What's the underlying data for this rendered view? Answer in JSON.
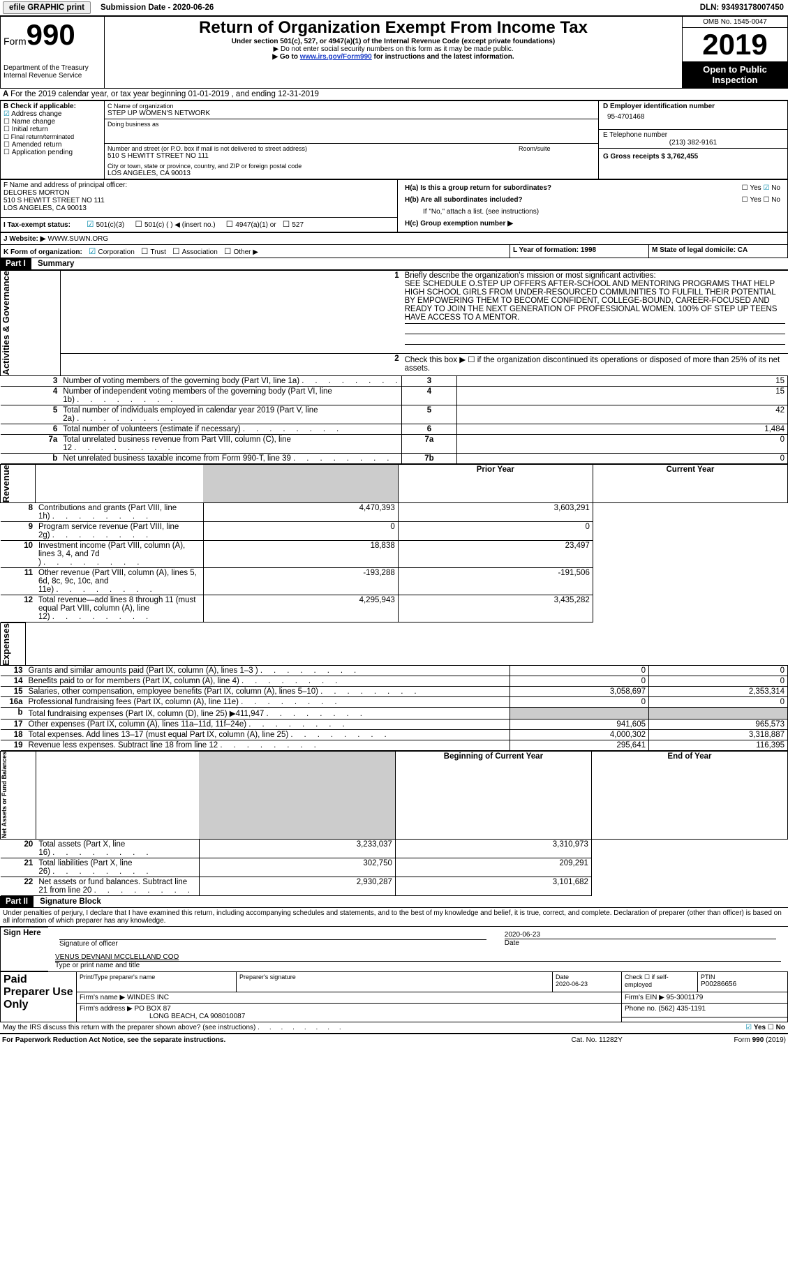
{
  "colors": {
    "link": "#1a3cc7",
    "checked": "#0088aa",
    "header_bg": "#000000",
    "header_fg": "#ffffff",
    "shade": "#cccccc"
  },
  "top_bar": {
    "efile_btn": "efile GRAPHIC print",
    "sub_label": "Submission Date - 2020-06-26",
    "dln": "DLN: 93493178007450"
  },
  "header": {
    "form_label": "Form",
    "form_num": "990",
    "dept1": "Department of the Treasury",
    "dept2": "Internal Revenue Service",
    "title": "Return of Organization Exempt From Income Tax",
    "subtitle": "Under section 501(c), 527, or 4947(a)(1) of the Internal Revenue Code (except private foundations)",
    "note1": "Do not enter social security numbers on this form as it may be made public.",
    "note2_pre": "Go to ",
    "note2_link": "www.irs.gov/Form990",
    "note2_post": " for instructions and the latest information.",
    "omb": "OMB No. 1545-0047",
    "year": "2019",
    "open": "Open to Public Inspection"
  },
  "line_a": "For the 2019 calendar year, or tax year beginning 01-01-2019   , and ending 12-31-2019",
  "box_b": {
    "title": "B Check if applicable:",
    "items": [
      "Address change",
      "Name change",
      "Initial return",
      "Final return/terminated",
      "Amended return",
      "Application pending"
    ],
    "checked_idx": 0
  },
  "box_c": {
    "c_label": "C Name of organization",
    "org": "STEP UP WOMEN'S NETWORK",
    "dba_label": "Doing business as",
    "addr_label": "Number and street (or P.O. box if mail is not delivered to street address)",
    "addr": "510 S HEWITT STREET NO 111",
    "room_label": "Room/suite",
    "city_label": "City or town, state or province, country, and ZIP or foreign postal code",
    "city": "LOS ANGELES, CA  90013"
  },
  "box_d": {
    "label": "D Employer identification number",
    "val": "95-4701468"
  },
  "box_e": {
    "label": "E Telephone number",
    "val": "(213) 382-9161"
  },
  "box_g": {
    "label": "G Gross receipts $ 3,762,455"
  },
  "box_f": {
    "label": "F  Name and address of principal officer:",
    "name": "DELORES MORTON",
    "addr1": "510 S HEWITT STREET NO 111",
    "addr2": "LOS ANGELES, CA  90013"
  },
  "box_h": {
    "ha": "H(a)  Is this a group return for subordinates?",
    "hb": "H(b)  Are all subordinates included?",
    "hb_note": "If \"No,\" attach a list. (see instructions)",
    "hc": "H(c)  Group exemption number ▶",
    "yes": "Yes",
    "no": "No"
  },
  "line_i": {
    "label": "I   Tax-exempt status:",
    "items": [
      "501(c)(3)",
      "501(c) (  ) ◀ (insert no.)",
      "4947(a)(1) or",
      "527"
    ],
    "checked_idx": 0
  },
  "line_j": {
    "label": "J   Website: ▶",
    "val": "WWW.SUWN.ORG"
  },
  "line_k": {
    "label": "K Form of organization:",
    "items": [
      "Corporation",
      "Trust",
      "Association",
      "Other ▶"
    ],
    "checked_idx": 0
  },
  "line_l": {
    "label": "L Year of formation: 1998"
  },
  "line_m": {
    "label": "M State of legal domicile: CA"
  },
  "part1": {
    "hdr": "Part I",
    "title": "Summary",
    "q1_label": "1",
    "q1_text": "Briefly describe the organization's mission or most significant activities:",
    "q1_body": "SEE SCHEDULE O.STEP UP OFFERS AFTER-SCHOOL AND MENTORING PROGRAMS THAT HELP HIGH SCHOOL GIRLS FROM UNDER-RESOURCED COMMUNITIES TO FULFILL THEIR POTENTIAL BY EMPOWERING THEM TO BECOME CONFIDENT, COLLEGE-BOUND, CAREER-FOCUSED AND READY TO JOIN THE NEXT GENERATION OF PROFESSIONAL WOMEN. 100% OF STEP UP TEENS HAVE ACCESS TO A MENTOR.",
    "q2": "Check this box ▶ ☐  if the organization discontinued its operations or disposed of more than 25% of its net assets.",
    "gov_side": "Activities & Governance",
    "rows_single": [
      {
        "n": "3",
        "d": "Number of voting members of the governing body (Part VI, line 1a)",
        "l": "3",
        "v": "15"
      },
      {
        "n": "4",
        "d": "Number of independent voting members of the governing body (Part VI, line 1b)",
        "l": "4",
        "v": "15"
      },
      {
        "n": "5",
        "d": "Total number of individuals employed in calendar year 2019 (Part V, line 2a)",
        "l": "5",
        "v": "42"
      },
      {
        "n": "6",
        "d": "Total number of volunteers (estimate if necessary)",
        "l": "6",
        "v": "1,484"
      },
      {
        "n": "7a",
        "d": "Total unrelated business revenue from Part VIII, column (C), line 12",
        "l": "7a",
        "v": "0"
      },
      {
        "n": "b",
        "d": "Net unrelated business taxable income from Form 990-T, line 39",
        "l": "7b",
        "v": "0"
      }
    ],
    "col_prior": "Prior Year",
    "col_curr": "Current Year",
    "rev_side": "Revenue",
    "rev_rows": [
      {
        "n": "8",
        "d": "Contributions and grants (Part VIII, line 1h)",
        "p": "4,470,393",
        "c": "3,603,291"
      },
      {
        "n": "9",
        "d": "Program service revenue (Part VIII, line 2g)",
        "p": "0",
        "c": "0"
      },
      {
        "n": "10",
        "d": "Investment income (Part VIII, column (A), lines 3, 4, and 7d )",
        "p": "18,838",
        "c": "23,497"
      },
      {
        "n": "11",
        "d": "Other revenue (Part VIII, column (A), lines 5, 6d, 8c, 9c, 10c, and 11e)",
        "p": "-193,288",
        "c": "-191,506"
      },
      {
        "n": "12",
        "d": "Total revenue—add lines 8 through 11 (must equal Part VIII, column (A), line 12)",
        "p": "4,295,943",
        "c": "3,435,282"
      }
    ],
    "exp_side": "Expenses",
    "exp_rows": [
      {
        "n": "13",
        "d": "Grants and similar amounts paid (Part IX, column (A), lines 1–3 )",
        "p": "0",
        "c": "0"
      },
      {
        "n": "14",
        "d": "Benefits paid to or for members (Part IX, column (A), line 4)",
        "p": "0",
        "c": "0"
      },
      {
        "n": "15",
        "d": "Salaries, other compensation, employee benefits (Part IX, column (A), lines 5–10)",
        "p": "3,058,697",
        "c": "2,353,314"
      },
      {
        "n": "16a",
        "d": "Professional fundraising fees (Part IX, column (A), line 11e)",
        "p": "0",
        "c": "0"
      },
      {
        "n": "b",
        "d": "Total fundraising expenses (Part IX, column (D), line 25) ▶411,947",
        "p": "__shade__",
        "c": "__shade__"
      },
      {
        "n": "17",
        "d": "Other expenses (Part IX, column (A), lines 11a–11d, 11f–24e)",
        "p": "941,605",
        "c": "965,573"
      },
      {
        "n": "18",
        "d": "Total expenses. Add lines 13–17 (must equal Part IX, column (A), line 25)",
        "p": "4,000,302",
        "c": "3,318,887"
      },
      {
        "n": "19",
        "d": "Revenue less expenses. Subtract line 18 from line 12",
        "p": "295,641",
        "c": "116,395"
      }
    ],
    "na_side": "Net Assets or Fund Balances",
    "col_beg": "Beginning of Current Year",
    "col_end": "End of Year",
    "na_rows": [
      {
        "n": "20",
        "d": "Total assets (Part X, line 16)",
        "p": "3,233,037",
        "c": "3,310,973"
      },
      {
        "n": "21",
        "d": "Total liabilities (Part X, line 26)",
        "p": "302,750",
        "c": "209,291"
      },
      {
        "n": "22",
        "d": "Net assets or fund balances. Subtract line 21 from line 20",
        "p": "2,930,287",
        "c": "3,101,682"
      }
    ]
  },
  "part2": {
    "hdr": "Part II",
    "title": "Signature Block",
    "decl": "Under penalties of perjury, I declare that I have examined this return, including accompanying schedules and statements, and to the best of my knowledge and belief, it is true, correct, and complete. Declaration of preparer (other than officer) is based on all information of which preparer has any knowledge.",
    "sign_here": "Sign Here",
    "sig_officer": "Signature of officer",
    "date": "Date",
    "date_val": "2020-06-23",
    "name_type": "Type or print name and title",
    "name_val": "VENUS DEVNANI MCCLELLAND COO",
    "paid": "Paid Preparer Use Only",
    "prep_name": "Print/Type preparer's name",
    "prep_sig": "Preparer's signature",
    "prep_date": "Date",
    "prep_date_val": "2020-06-23",
    "check_if": "Check ☐ if self-employed",
    "ptin_label": "PTIN",
    "ptin": "P00286656",
    "firm_name_l": "Firm's name    ▶",
    "firm_name": "WINDES INC",
    "firm_ein_l": "Firm's EIN ▶",
    "firm_ein": "95-3001179",
    "firm_addr_l": "Firm's address ▶",
    "firm_addr": "PO BOX 87",
    "firm_addr2": "LONG BEACH, CA  908010087",
    "phone_l": "Phone no.",
    "phone": "(562) 435-1191",
    "may_irs": "May the IRS discuss this return with the preparer shown above? (see instructions)"
  },
  "footer": {
    "pra": "For Paperwork Reduction Act Notice, see the separate instructions.",
    "cat": "Cat. No. 11282Y",
    "form": "Form 990 (2019)"
  }
}
